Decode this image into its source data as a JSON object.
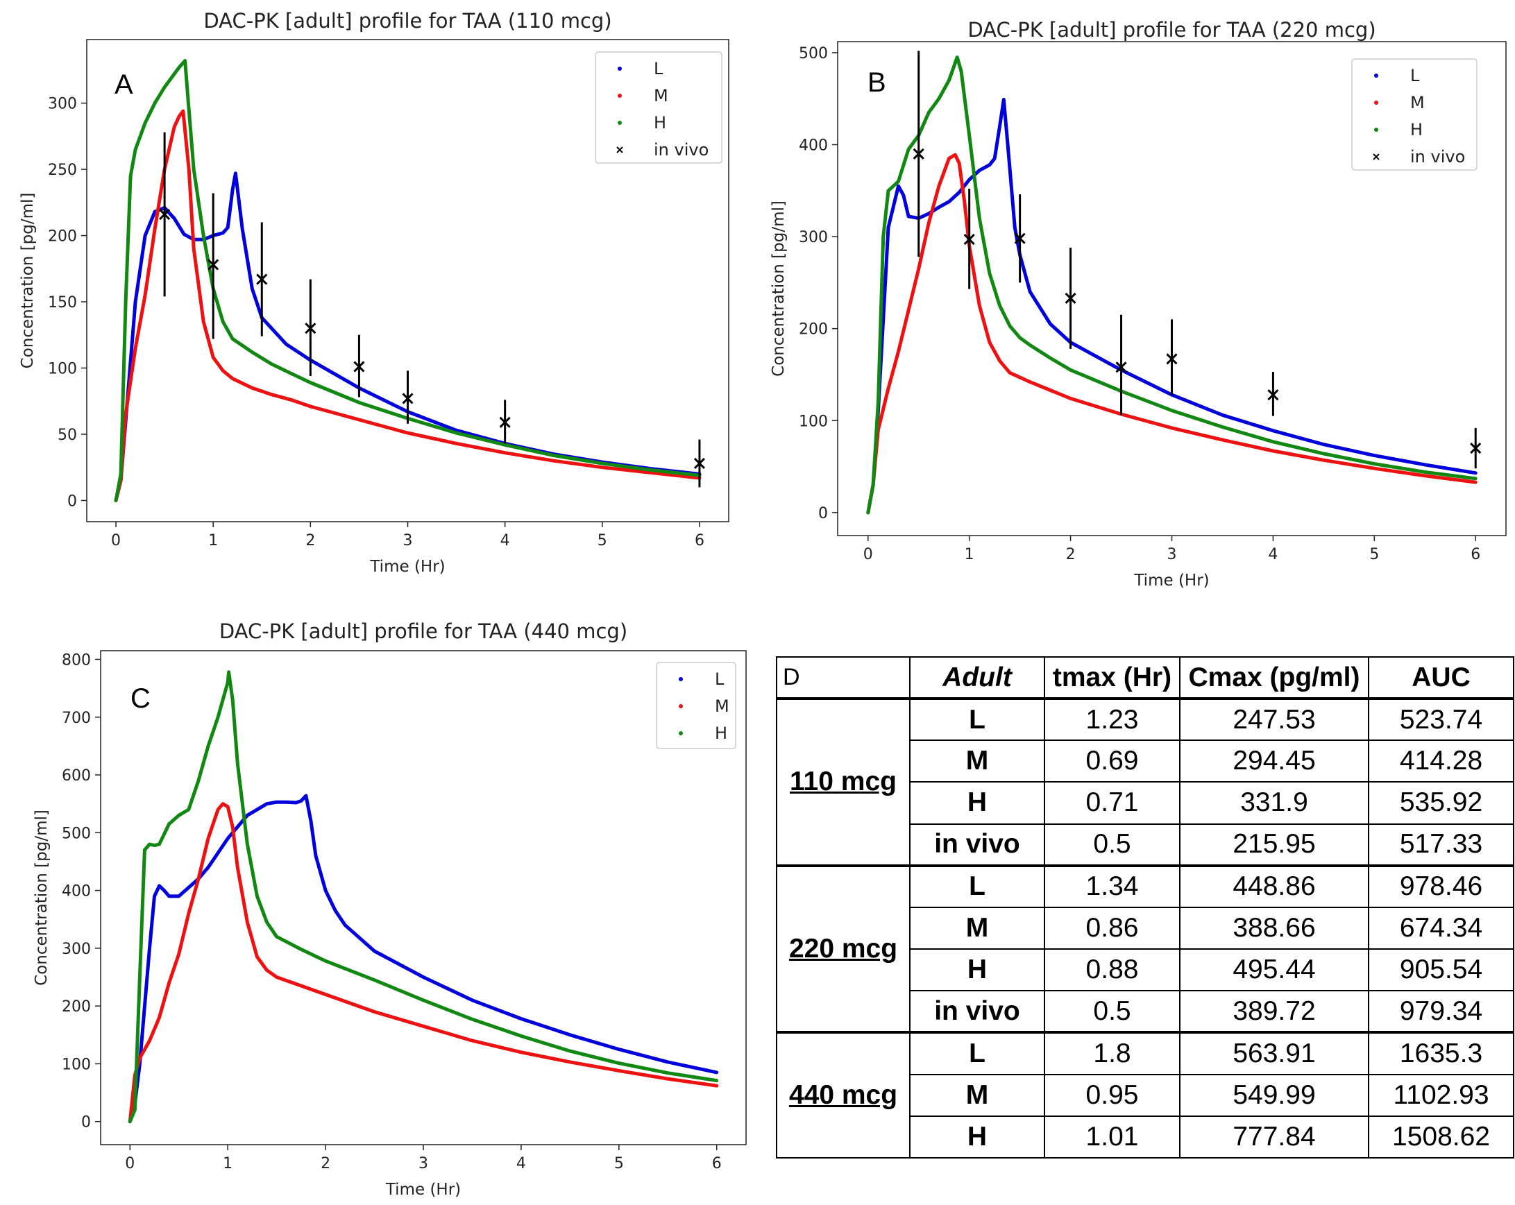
{
  "colors": {
    "L": "#0000dd",
    "M": "#ee1111",
    "H": "#118811",
    "invivo": "#000000"
  },
  "chart_data": [
    {
      "type": "line",
      "panel": "A",
      "title": "DAC-PK [adult] profile for TAA (110 mcg)",
      "xlabel": "Time (Hr)",
      "ylabel": "Concentration [pg/ml]",
      "xlim": [
        -0.3,
        6.3
      ],
      "ylim": [
        -16,
        348
      ],
      "xticks": [
        0,
        1,
        2,
        3,
        4,
        5,
        6
      ],
      "yticks": [
        0,
        50,
        100,
        150,
        200,
        250,
        300
      ],
      "legend": "top-right",
      "legend_entries": [
        "L",
        "M",
        "H",
        "in vivo"
      ],
      "series": [
        {
          "name": "L",
          "x": [
            0,
            0.05,
            0.1,
            0.2,
            0.3,
            0.4,
            0.5,
            0.6,
            0.7,
            0.8,
            0.9,
            1.0,
            1.1,
            1.15,
            1.2,
            1.23,
            1.3,
            1.4,
            1.5,
            1.75,
            2,
            2.5,
            3,
            3.5,
            4,
            4.5,
            5,
            5.5,
            6
          ],
          "y": [
            0,
            15,
            60,
            150,
            200,
            218,
            221,
            213,
            201,
            197,
            197,
            200,
            202,
            206,
            235,
            247,
            205,
            160,
            138,
            118,
            106,
            85,
            67,
            53,
            43,
            35,
            29,
            24,
            20
          ]
        },
        {
          "name": "M",
          "x": [
            0,
            0.05,
            0.1,
            0.2,
            0.3,
            0.4,
            0.5,
            0.6,
            0.65,
            0.69,
            0.75,
            0.8,
            0.9,
            1.0,
            1.1,
            1.2,
            1.4,
            1.6,
            1.8,
            2,
            2.5,
            3,
            3.5,
            4,
            4.5,
            5,
            5.5,
            6
          ],
          "y": [
            0,
            15,
            65,
            115,
            155,
            205,
            250,
            282,
            290,
            294,
            250,
            190,
            135,
            108,
            98,
            92,
            85,
            80,
            76,
            71,
            61,
            51,
            43,
            36,
            30,
            25,
            21,
            17
          ]
        },
        {
          "name": "H",
          "x": [
            0,
            0.05,
            0.1,
            0.15,
            0.2,
            0.3,
            0.4,
            0.5,
            0.6,
            0.65,
            0.71,
            0.75,
            0.8,
            0.9,
            1.0,
            1.1,
            1.2,
            1.4,
            1.6,
            1.8,
            2,
            2.5,
            3,
            3.5,
            4,
            4.5,
            5,
            5.5,
            6
          ],
          "y": [
            0,
            20,
            150,
            245,
            265,
            285,
            300,
            312,
            322,
            327,
            332,
            295,
            250,
            200,
            160,
            135,
            122,
            112,
            103,
            96,
            89,
            74,
            62,
            51,
            42,
            34,
            28,
            23,
            19
          ]
        }
      ],
      "in_vivo": {
        "x": [
          0.5,
          1.0,
          1.5,
          2.0,
          2.5,
          3.0,
          4.0,
          6.0
        ],
        "y": [
          216,
          178,
          167,
          130,
          101,
          77,
          59,
          28
        ],
        "err_low": [
          154,
          122,
          124,
          94,
          78,
          58,
          43,
          10
        ],
        "err_high": [
          278,
          232,
          210,
          167,
          125,
          98,
          76,
          46
        ]
      }
    },
    {
      "type": "line",
      "panel": "B",
      "title": "DAC-PK [adult] profile for TAA (220 mcg)",
      "xlabel": "Time (Hr)",
      "ylabel": "Concentration [pg/ml]",
      "xlim": [
        -0.3,
        6.3
      ],
      "ylim": [
        -25,
        512
      ],
      "xticks": [
        0,
        1,
        2,
        3,
        4,
        5,
        6
      ],
      "yticks": [
        0,
        100,
        200,
        300,
        400,
        500
      ],
      "legend": "top-right",
      "legend_entries": [
        "L",
        "M",
        "H",
        "in vivo"
      ],
      "series": [
        {
          "name": "L",
          "x": [
            0,
            0.05,
            0.1,
            0.2,
            0.3,
            0.35,
            0.4,
            0.5,
            0.6,
            0.7,
            0.8,
            0.9,
            1.0,
            1.1,
            1.2,
            1.25,
            1.3,
            1.34,
            1.38,
            1.45,
            1.5,
            1.6,
            1.8,
            2,
            2.5,
            3,
            3.5,
            4,
            4.5,
            5,
            5.5,
            6
          ],
          "y": [
            0,
            30,
            110,
            310,
            355,
            345,
            322,
            320,
            325,
            332,
            338,
            348,
            362,
            372,
            378,
            385,
            420,
            449,
            400,
            310,
            280,
            240,
            205,
            185,
            155,
            128,
            106,
            89,
            74,
            62,
            52,
            43
          ]
        },
        {
          "name": "M",
          "x": [
            0,
            0.05,
            0.1,
            0.2,
            0.3,
            0.4,
            0.5,
            0.6,
            0.7,
            0.8,
            0.86,
            0.9,
            0.95,
            1.0,
            1.1,
            1.2,
            1.3,
            1.4,
            1.6,
            1.8,
            2,
            2.5,
            3,
            3.5,
            4,
            4.5,
            5,
            5.5,
            6
          ],
          "y": [
            0,
            30,
            90,
            135,
            175,
            220,
            265,
            315,
            355,
            385,
            389,
            380,
            340,
            290,
            225,
            185,
            165,
            152,
            142,
            133,
            124,
            107,
            92,
            79,
            67,
            57,
            48,
            40,
            33
          ]
        },
        {
          "name": "H",
          "x": [
            0,
            0.05,
            0.1,
            0.15,
            0.2,
            0.25,
            0.3,
            0.4,
            0.5,
            0.6,
            0.7,
            0.8,
            0.88,
            0.92,
            1.0,
            1.1,
            1.2,
            1.3,
            1.4,
            1.5,
            1.6,
            1.8,
            2,
            2.5,
            3,
            3.5,
            4,
            4.5,
            5,
            5.5,
            6
          ],
          "y": [
            0,
            30,
            120,
            300,
            350,
            355,
            360,
            395,
            410,
            435,
            450,
            470,
            495,
            480,
            410,
            320,
            260,
            225,
            203,
            190,
            182,
            168,
            155,
            132,
            111,
            93,
            77,
            64,
            53,
            44,
            37
          ]
        }
      ],
      "in_vivo": {
        "x": [
          0.5,
          1.0,
          1.5,
          2.0,
          2.5,
          3.0,
          4.0,
          6.0
        ],
        "y": [
          390,
          297,
          298,
          233,
          158,
          167,
          128,
          70
        ],
        "err_low": [
          278,
          243,
          250,
          178,
          106,
          128,
          105,
          48
        ],
        "err_high": [
          502,
          352,
          346,
          288,
          215,
          210,
          153,
          92
        ]
      }
    },
    {
      "type": "line",
      "panel": "C",
      "title": "DAC-PK [adult] profile for TAA (440 mcg)",
      "xlabel": "Time (Hr)",
      "ylabel": "Concentration [pg/ml]",
      "xlim": [
        -0.3,
        6.3
      ],
      "ylim": [
        -40,
        815
      ],
      "xticks": [
        0,
        1,
        2,
        3,
        4,
        5,
        6
      ],
      "yticks": [
        0,
        100,
        200,
        300,
        400,
        500,
        600,
        700,
        800
      ],
      "legend": "top-right",
      "legend_entries": [
        "L",
        "M",
        "H"
      ],
      "series": [
        {
          "name": "L",
          "x": [
            0,
            0.05,
            0.1,
            0.2,
            0.25,
            0.3,
            0.35,
            0.4,
            0.5,
            0.6,
            0.7,
            0.8,
            0.9,
            1.0,
            1.2,
            1.4,
            1.5,
            1.6,
            1.7,
            1.75,
            1.8,
            1.85,
            1.9,
            2.0,
            2.1,
            2.2,
            2.5,
            3,
            3.5,
            4,
            4.5,
            5,
            5.5,
            6
          ],
          "y": [
            0,
            30,
            100,
            300,
            390,
            408,
            400,
            390,
            390,
            405,
            420,
            440,
            465,
            490,
            530,
            550,
            553,
            553,
            552,
            555,
            564,
            520,
            460,
            400,
            365,
            340,
            295,
            250,
            210,
            178,
            150,
            125,
            103,
            85
          ]
        },
        {
          "name": "M",
          "x": [
            0,
            0.05,
            0.1,
            0.2,
            0.3,
            0.4,
            0.5,
            0.6,
            0.7,
            0.8,
            0.9,
            0.95,
            1.0,
            1.05,
            1.1,
            1.2,
            1.3,
            1.4,
            1.5,
            2,
            2.5,
            3,
            3.5,
            4,
            4.5,
            5,
            5.5,
            6
          ],
          "y": [
            0,
            80,
            110,
            140,
            180,
            240,
            290,
            360,
            420,
            490,
            540,
            550,
            545,
            510,
            440,
            345,
            285,
            262,
            250,
            220,
            190,
            165,
            140,
            120,
            103,
            88,
            74,
            62
          ]
        },
        {
          "name": "H",
          "x": [
            0,
            0.05,
            0.1,
            0.15,
            0.2,
            0.25,
            0.3,
            0.4,
            0.5,
            0.6,
            0.7,
            0.8,
            0.9,
            0.95,
            1.0,
            1.01,
            1.05,
            1.1,
            1.2,
            1.3,
            1.4,
            1.5,
            1.75,
            2,
            2.5,
            3,
            3.5,
            4,
            4.5,
            5,
            5.5,
            6
          ],
          "y": [
            0,
            20,
            250,
            470,
            480,
            478,
            480,
            515,
            530,
            540,
            590,
            650,
            700,
            730,
            760,
            778,
            730,
            620,
            480,
            390,
            345,
            320,
            298,
            278,
            245,
            210,
            177,
            148,
            122,
            101,
            84,
            71
          ]
        }
      ]
    }
  ],
  "table": {
    "corner_label": "D",
    "headers": [
      "Adult",
      "tmax (Hr)",
      "Cmax (pg/ml)",
      "AUC"
    ],
    "groups": [
      {
        "dose": "110 mcg",
        "rows": [
          {
            "label": "L",
            "tmax": "1.23",
            "cmax": "247.53",
            "auc": "523.74"
          },
          {
            "label": "M",
            "tmax": "0.69",
            "cmax": "294.45",
            "auc": "414.28"
          },
          {
            "label": "H",
            "tmax": "0.71",
            "cmax": "331.9",
            "auc": "535.92"
          },
          {
            "label": "in vivo",
            "tmax": "0.5",
            "cmax": "215.95",
            "auc": "517.33"
          }
        ]
      },
      {
        "dose": "220 mcg",
        "rows": [
          {
            "label": "L",
            "tmax": "1.34",
            "cmax": "448.86",
            "auc": "978.46"
          },
          {
            "label": "M",
            "tmax": "0.86",
            "cmax": "388.66",
            "auc": "674.34"
          },
          {
            "label": "H",
            "tmax": "0.88",
            "cmax": "495.44",
            "auc": "905.54"
          },
          {
            "label": "in vivo",
            "tmax": "0.5",
            "cmax": "389.72",
            "auc": "979.34"
          }
        ]
      },
      {
        "dose": "440 mcg",
        "rows": [
          {
            "label": "L",
            "tmax": "1.8",
            "cmax": "563.91",
            "auc": "1635.3"
          },
          {
            "label": "M",
            "tmax": "0.95",
            "cmax": "549.99",
            "auc": "1102.93"
          },
          {
            "label": "H",
            "tmax": "1.01",
            "cmax": "777.84",
            "auc": "1508.62"
          }
        ]
      }
    ]
  }
}
